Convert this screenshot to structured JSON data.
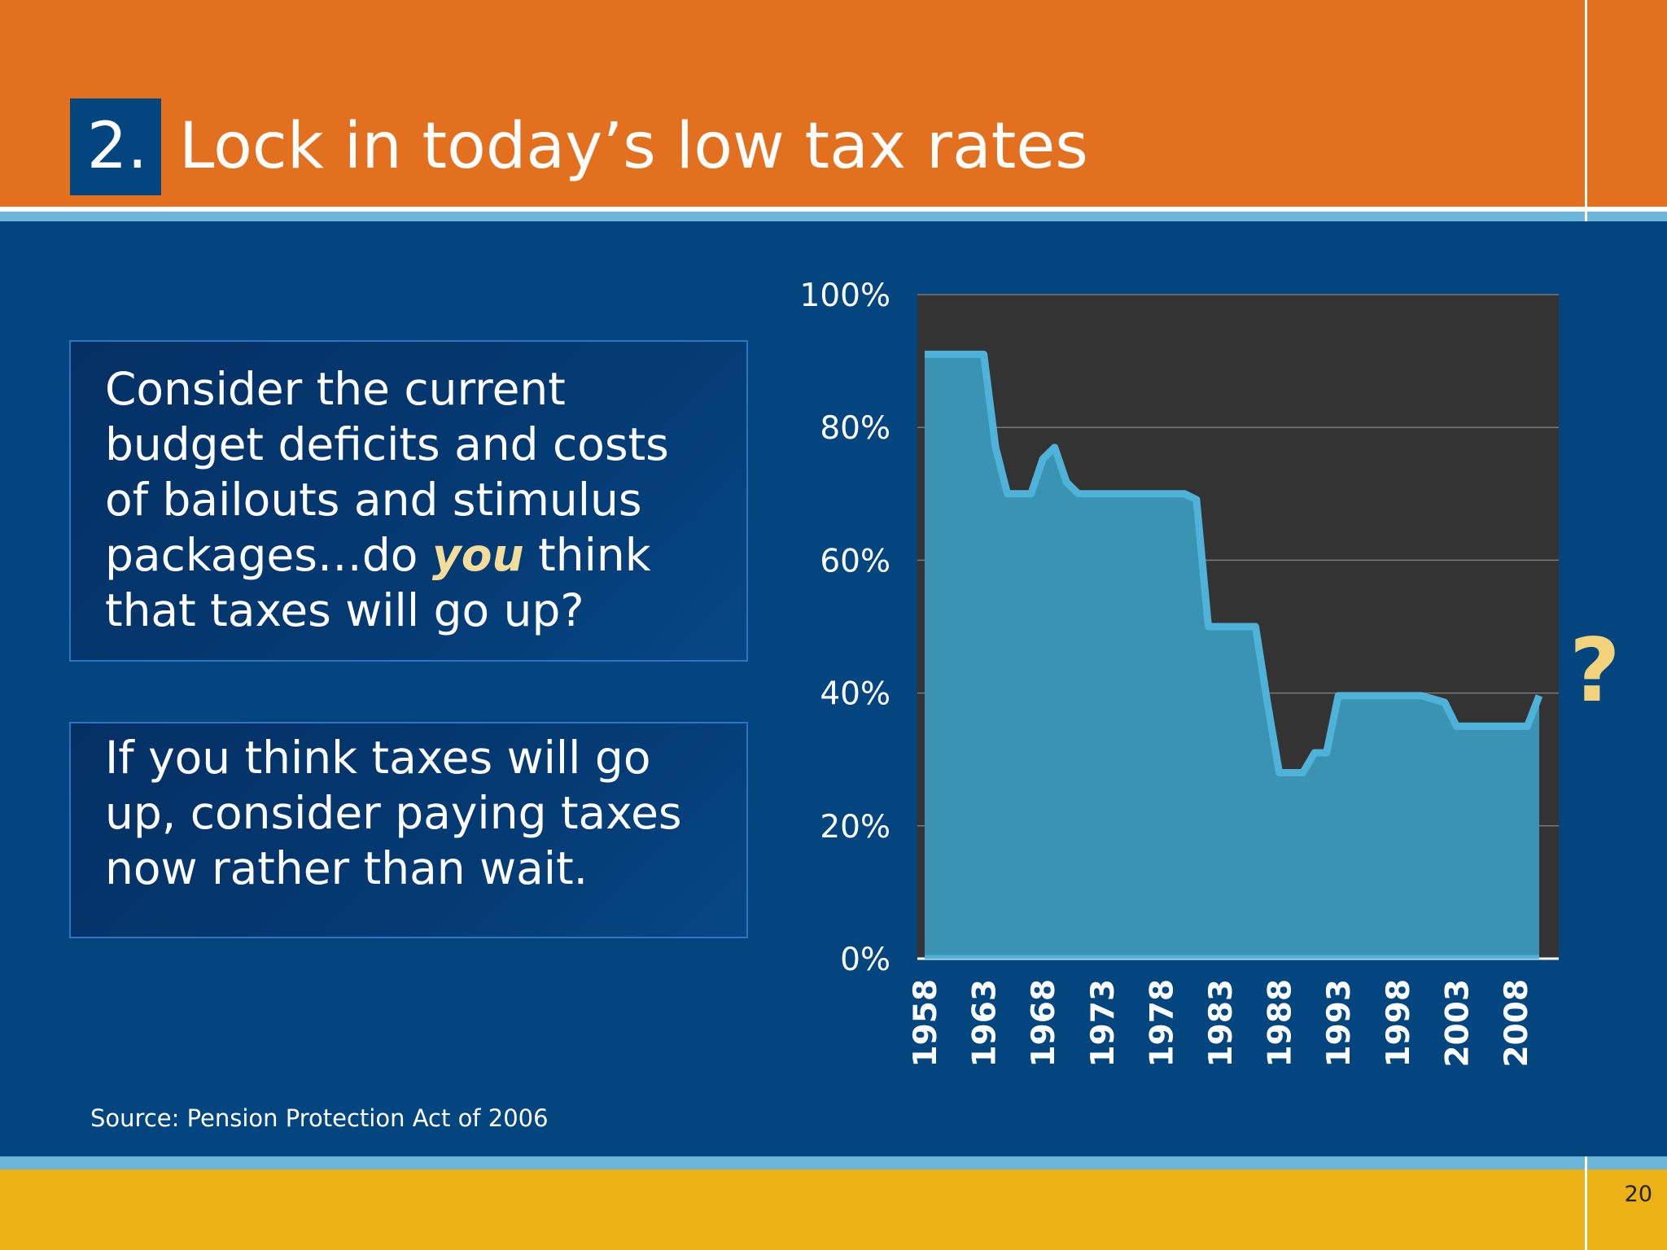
{
  "slide": {
    "number": "2.",
    "title": "Lock in today’s low tax rates",
    "box1": {
      "before": "Consider the current budget deficits and costs of bailouts and stimulus packages…do ",
      "emphasis": "you",
      "after": " think that taxes will go up?"
    },
    "box2": "If you think taxes will go up, consider paying taxes now rather than wait.",
    "source": "Source: Pension Protection Act of 2006",
    "page_number": "20",
    "question_mark": "?"
  },
  "colors": {
    "background": "#02457f",
    "header": "#e2701f",
    "footer": "#ecb114",
    "stripe": "#6cb6d9",
    "plot_bg": "#333333",
    "area_fill": "#3a93b2",
    "area_line": "#4fb3d9",
    "emphasis": "#f4dc9a"
  },
  "chart_data": {
    "type": "area",
    "title": "",
    "xlabel": "",
    "ylabel": "",
    "ylim": [
      0,
      100
    ],
    "y_ticks": [
      "0%",
      "20%",
      "40%",
      "60%",
      "80%",
      "100%"
    ],
    "x_ticks": [
      "1958",
      "1963",
      "1968",
      "1973",
      "1978",
      "1983",
      "1988",
      "1993",
      "1998",
      "2003",
      "2008"
    ],
    "xlim": [
      1958,
      2010
    ],
    "grid": true,
    "legend": "none",
    "series": [
      {
        "x": [
          1958,
          1959,
          1960,
          1961,
          1962,
          1963,
          1964,
          1965,
          1966,
          1967,
          1968,
          1969,
          1970,
          1971,
          1972,
          1973,
          1974,
          1975,
          1976,
          1977,
          1978,
          1979,
          1980,
          1981,
          1982,
          1983,
          1984,
          1985,
          1986,
          1987,
          1988,
          1989,
          1990,
          1991,
          1992,
          1993,
          1994,
          1995,
          1996,
          1997,
          1998,
          1999,
          2000,
          2001,
          2002,
          2003,
          2004,
          2005,
          2006,
          2007,
          2008,
          2009,
          2010
        ],
        "values": [
          91,
          91,
          91,
          91,
          91,
          91,
          77,
          70,
          70,
          70,
          75.25,
          77,
          71.75,
          70,
          70,
          70,
          70,
          70,
          70,
          70,
          70,
          70,
          70,
          69.13,
          50,
          50,
          50,
          50,
          50,
          38.5,
          28,
          28,
          28,
          31,
          31,
          39.6,
          39.6,
          39.6,
          39.6,
          39.6,
          39.6,
          39.6,
          39.6,
          39.1,
          38.6,
          35,
          35,
          35,
          35,
          35,
          35,
          35,
          39.6
        ]
      }
    ]
  }
}
